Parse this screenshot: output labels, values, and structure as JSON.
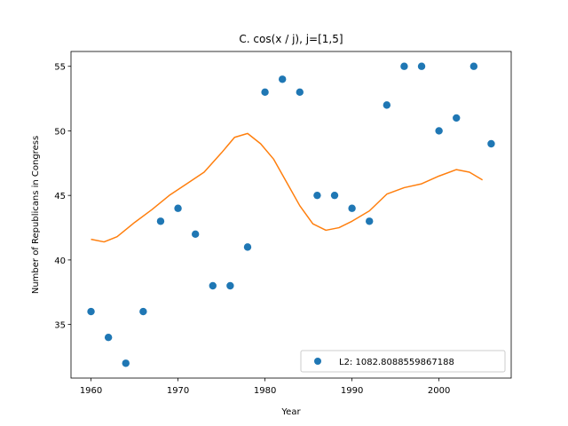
{
  "chart_data": {
    "type": "scatter",
    "title": "C. cos(x / j), j=[1,5]",
    "xlabel": "Year",
    "ylabel": "Number of Republicans in Congress",
    "xlim": [
      1957.7,
      2008.3
    ],
    "ylim": [
      30.85,
      56.15
    ],
    "xticks": [
      1960,
      1970,
      1980,
      1990,
      2000
    ],
    "yticks": [
      35,
      40,
      45,
      50,
      55
    ],
    "grid": false,
    "legend_position": "lower right",
    "series": [
      {
        "type": "scatter",
        "name": "L2: 1082.8088559867188",
        "color": "#1f77b4",
        "x": [
          1960,
          1962,
          1964,
          1966,
          1968,
          1970,
          1972,
          1974,
          1976,
          1978,
          1980,
          1982,
          1984,
          1986,
          1988,
          1990,
          1992,
          1994,
          1996,
          1998,
          2000,
          2002,
          2004,
          2006
        ],
        "y": [
          36,
          34,
          32,
          36,
          43,
          44,
          42,
          38,
          38,
          41,
          53,
          54,
          53,
          45,
          45,
          44,
          43,
          52,
          55,
          55,
          50,
          51,
          55,
          49
        ]
      },
      {
        "type": "line",
        "color": "#ff7f0e",
        "x": [
          1960,
          1961.5,
          1963,
          1965,
          1967,
          1969,
          1971,
          1973,
          1975,
          1976.5,
          1978,
          1979.5,
          1981,
          1982.5,
          1984,
          1985.5,
          1987,
          1988.5,
          1990,
          1992,
          1994,
          1996,
          1998,
          2000,
          2002,
          2003.5,
          2005
        ],
        "y": [
          41.6,
          41.4,
          41.8,
          42.9,
          43.9,
          45.0,
          45.9,
          46.8,
          48.3,
          49.5,
          49.8,
          49.0,
          47.8,
          46.0,
          44.2,
          42.8,
          42.3,
          42.5,
          43.0,
          43.8,
          45.1,
          45.6,
          45.9,
          46.5,
          47.0,
          46.8,
          46.2
        ]
      }
    ]
  }
}
